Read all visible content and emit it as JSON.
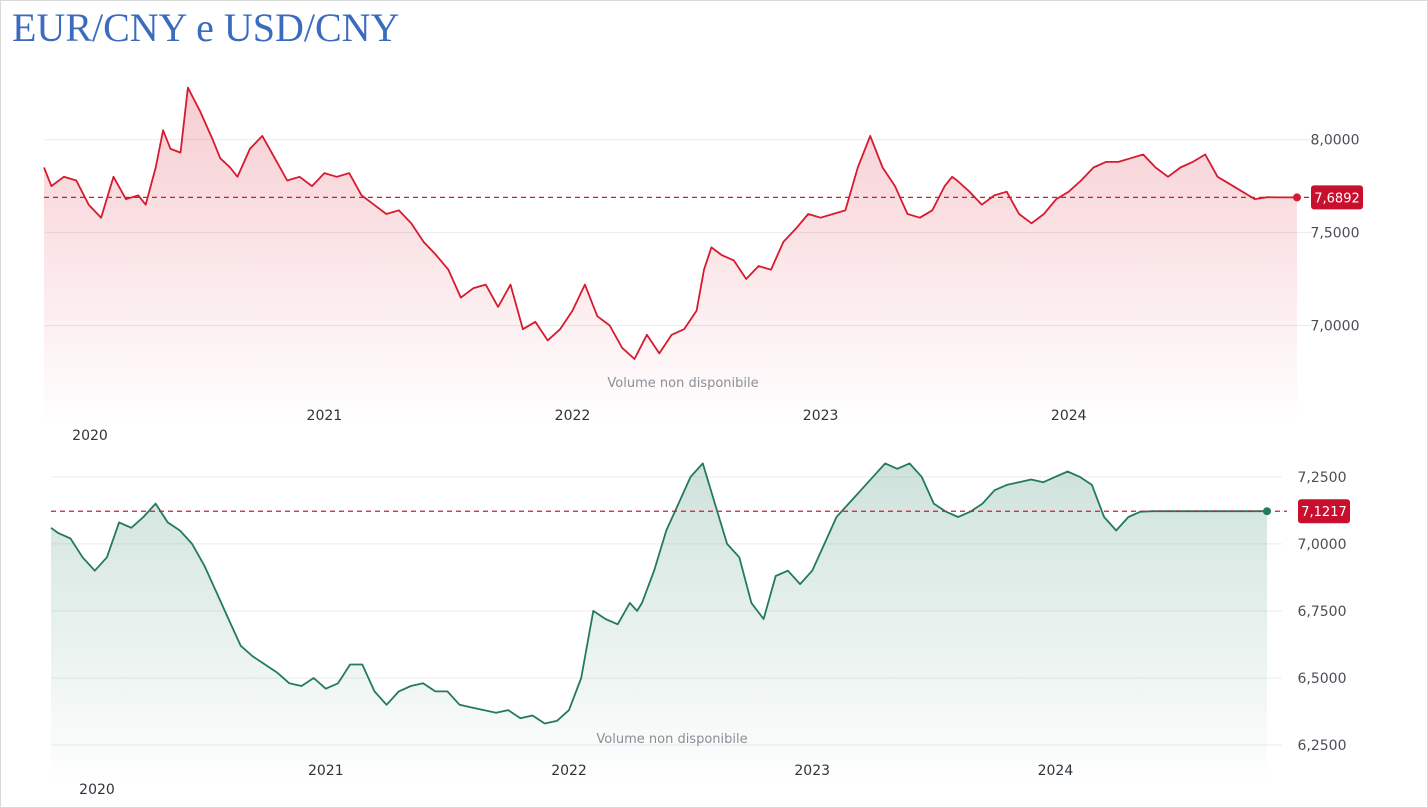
{
  "title": "EUR/CNY e USD/CNY",
  "colors": {
    "title": "#3a6bbf",
    "eur_line": "#d71a2f",
    "usd_line": "#237a5c",
    "eur_badge": "#c8102e",
    "usd_badge": "#c8102e",
    "grid": "#ececec"
  },
  "chart_data": [
    {
      "type": "area",
      "title": "",
      "xlabel": "",
      "ylabel": "",
      "x_start": 2019.87,
      "x_end": 2024.92,
      "ylim": [
        6.68,
        8.24
      ],
      "yticks": [
        "8,0000",
        "7,5000",
        "7,0000"
      ],
      "ytick_values": [
        8.0,
        7.5,
        7.0
      ],
      "xticks": [
        "2021",
        "2022",
        "2023",
        "2024"
      ],
      "xtick_values": [
        2021.0,
        2022.0,
        2023.0,
        2024.0
      ],
      "first_year_label": "2020",
      "current_value": 7.6892,
      "current_label": "7,6892",
      "note": "Volume non disponibile",
      "grid": true,
      "series": [
        {
          "x": [
            2019.87,
            2019.9,
            2019.95,
            2020.0,
            2020.05,
            2020.1,
            2020.15,
            2020.2,
            2020.25,
            2020.28,
            2020.32,
            2020.35,
            2020.38,
            2020.42,
            2020.45,
            2020.5,
            2020.55,
            2020.58,
            2020.62,
            2020.65,
            2020.7,
            2020.75,
            2020.8,
            2020.85,
            2020.9,
            2020.95,
            2021.0,
            2021.05,
            2021.1,
            2021.15,
            2021.2,
            2021.25,
            2021.3,
            2021.35,
            2021.4,
            2021.45,
            2021.5,
            2021.55,
            2021.6,
            2021.65,
            2021.7,
            2021.75,
            2021.8,
            2021.85,
            2021.9,
            2021.95,
            2022.0,
            2022.05,
            2022.1,
            2022.15,
            2022.2,
            2022.25,
            2022.3,
            2022.35,
            2022.4,
            2022.45,
            2022.5,
            2022.53,
            2022.56,
            2022.6,
            2022.65,
            2022.7,
            2022.75,
            2022.8,
            2022.85,
            2022.9,
            2022.95,
            2023.0,
            2023.05,
            2023.1,
            2023.15,
            2023.2,
            2023.25,
            2023.3,
            2023.35,
            2023.4,
            2023.45,
            2023.5,
            2023.53,
            2023.55,
            2023.6,
            2023.65,
            2023.7,
            2023.75,
            2023.8,
            2023.85,
            2023.9,
            2023.95,
            2024.0,
            2024.05,
            2024.1,
            2024.15,
            2024.2,
            2024.25,
            2024.3,
            2024.35,
            2024.4,
            2024.45,
            2024.5,
            2024.55,
            2024.6,
            2024.65,
            2024.7,
            2024.75,
            2024.8,
            2024.85,
            2024.9,
            2024.92
          ],
          "y": [
            7.85,
            7.75,
            7.8,
            7.78,
            7.65,
            7.58,
            7.8,
            7.68,
            7.7,
            7.65,
            7.85,
            8.05,
            7.95,
            7.93,
            8.28,
            8.15,
            8.0,
            7.9,
            7.85,
            7.8,
            7.95,
            8.02,
            7.9,
            7.78,
            7.8,
            7.75,
            7.82,
            7.8,
            7.82,
            7.7,
            7.65,
            7.6,
            7.62,
            7.55,
            7.45,
            7.38,
            7.3,
            7.15,
            7.2,
            7.22,
            7.1,
            7.22,
            6.98,
            7.02,
            6.92,
            6.98,
            7.08,
            7.22,
            7.05,
            7.0,
            6.88,
            6.82,
            6.95,
            6.85,
            6.95,
            6.98,
            7.08,
            7.3,
            7.42,
            7.38,
            7.35,
            7.25,
            7.32,
            7.3,
            7.45,
            7.52,
            7.6,
            7.58,
            7.6,
            7.62,
            7.85,
            8.02,
            7.85,
            7.75,
            7.6,
            7.58,
            7.62,
            7.75,
            7.8,
            7.78,
            7.72,
            7.65,
            7.7,
            7.72,
            7.6,
            7.55,
            7.6,
            7.68,
            7.72,
            7.78,
            7.85,
            7.88,
            7.88,
            7.9,
            7.92,
            7.85,
            7.8,
            7.85,
            7.88,
            7.92,
            7.8,
            7.76,
            7.72,
            7.68,
            7.69,
            7.6892,
            7.6892,
            7.6892
          ]
        }
      ]
    },
    {
      "type": "area",
      "title": "",
      "xlabel": "",
      "ylabel": "",
      "x_start": 2019.87,
      "x_end": 2024.87,
      "ylim": [
        6.25,
        7.35
      ],
      "yticks": [
        "7,2500",
        "7,0000",
        "6,7500",
        "6,5000",
        "6,2500"
      ],
      "ytick_values": [
        7.25,
        7.0,
        6.75,
        6.5,
        6.25
      ],
      "xticks": [
        "2021",
        "2022",
        "2023",
        "2024"
      ],
      "xtick_values": [
        2021.0,
        2022.0,
        2023.0,
        2024.0
      ],
      "first_year_label": "2020",
      "current_value": 7.1217,
      "current_label": "7,1217",
      "note": "Volume non disponibile",
      "grid": true,
      "series": [
        {
          "x": [
            2019.87,
            2019.9,
            2019.95,
            2020.0,
            2020.05,
            2020.1,
            2020.15,
            2020.2,
            2020.25,
            2020.3,
            2020.35,
            2020.4,
            2020.45,
            2020.5,
            2020.55,
            2020.6,
            2020.65,
            2020.7,
            2020.75,
            2020.8,
            2020.85,
            2020.9,
            2020.95,
            2021.0,
            2021.05,
            2021.1,
            2021.15,
            2021.2,
            2021.25,
            2021.3,
            2021.35,
            2021.4,
            2021.45,
            2021.5,
            2021.55,
            2021.6,
            2021.65,
            2021.7,
            2021.75,
            2021.8,
            2021.85,
            2021.9,
            2021.95,
            2022.0,
            2022.05,
            2022.1,
            2022.15,
            2022.2,
            2022.25,
            2022.28,
            2022.3,
            2022.35,
            2022.4,
            2022.45,
            2022.5,
            2022.55,
            2022.6,
            2022.65,
            2022.7,
            2022.75,
            2022.8,
            2022.85,
            2022.9,
            2022.95,
            2023.0,
            2023.05,
            2023.1,
            2023.15,
            2023.2,
            2023.25,
            2023.3,
            2023.35,
            2023.4,
            2023.45,
            2023.5,
            2023.55,
            2023.6,
            2023.65,
            2023.7,
            2023.75,
            2023.8,
            2023.85,
            2023.9,
            2023.95,
            2024.0,
            2024.05,
            2024.1,
            2024.15,
            2024.2,
            2024.25,
            2024.3,
            2024.35,
            2024.4,
            2024.45,
            2024.5,
            2024.55,
            2024.6,
            2024.65,
            2024.7,
            2024.75,
            2024.8,
            2024.85,
            2024.87
          ],
          "y": [
            7.06,
            7.04,
            7.02,
            6.95,
            6.9,
            6.95,
            7.08,
            7.06,
            7.1,
            7.15,
            7.08,
            7.05,
            7.0,
            6.92,
            6.82,
            6.72,
            6.62,
            6.58,
            6.55,
            6.52,
            6.48,
            6.47,
            6.5,
            6.46,
            6.48,
            6.55,
            6.55,
            6.45,
            6.4,
            6.45,
            6.47,
            6.48,
            6.45,
            6.45,
            6.4,
            6.39,
            6.38,
            6.37,
            6.38,
            6.35,
            6.36,
            6.33,
            6.34,
            6.38,
            6.5,
            6.75,
            6.72,
            6.7,
            6.78,
            6.75,
            6.78,
            6.9,
            7.05,
            7.15,
            7.25,
            7.3,
            7.15,
            7.0,
            6.95,
            6.78,
            6.72,
            6.88,
            6.9,
            6.85,
            6.9,
            7.0,
            7.1,
            7.15,
            7.2,
            7.25,
            7.3,
            7.28,
            7.3,
            7.25,
            7.15,
            7.12,
            7.1,
            7.12,
            7.15,
            7.2,
            7.22,
            7.23,
            7.24,
            7.23,
            7.25,
            7.27,
            7.25,
            7.22,
            7.1,
            7.05,
            7.1,
            7.12,
            7.1217,
            7.1217,
            7.1217,
            7.1217,
            7.1217,
            7.1217,
            7.1217,
            7.1217,
            7.1217,
            7.1217,
            7.1217
          ]
        }
      ]
    }
  ]
}
